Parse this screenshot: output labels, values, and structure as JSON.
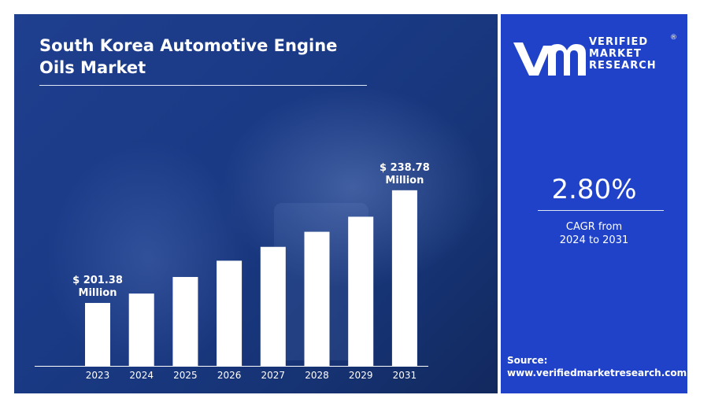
{
  "header": {
    "title_line1": "South Korea Automotive Engine",
    "title_line2": "Oils Market"
  },
  "chart_data": {
    "type": "bar",
    "title": "South Korea Automotive Engine Oils Market",
    "categories": [
      "2023",
      "2024",
      "2025",
      "2026",
      "2027",
      "2028",
      "2029",
      "2031"
    ],
    "values": [
      201.38,
      204.5,
      210.0,
      215.4,
      220.0,
      225.0,
      230.0,
      238.78
    ],
    "ylim": [
      180.5,
      245
    ],
    "bar_color": "#ffffff",
    "annotations": [
      {
        "category": "2023",
        "line1": "$ 201.38",
        "line2": "Million"
      },
      {
        "category": "2031",
        "line1": "$ 238.78",
        "line2": "Million"
      }
    ]
  },
  "brand": {
    "line1": "VERIFIED",
    "line2": "MARKET",
    "line3": "RESEARCH",
    "registered": "®",
    "logo_icon": "vmr-logo-icon"
  },
  "cagr": {
    "value": "2.80%",
    "label_line1": "CAGR from",
    "label_line2": "2024 to 2031"
  },
  "source": {
    "label": "Source:",
    "url": "www.verifiedmarketresearch.com"
  },
  "colors": {
    "left_panel": "#1a3a86",
    "right_panel": "#1f42c9",
    "text": "#ffffff"
  }
}
